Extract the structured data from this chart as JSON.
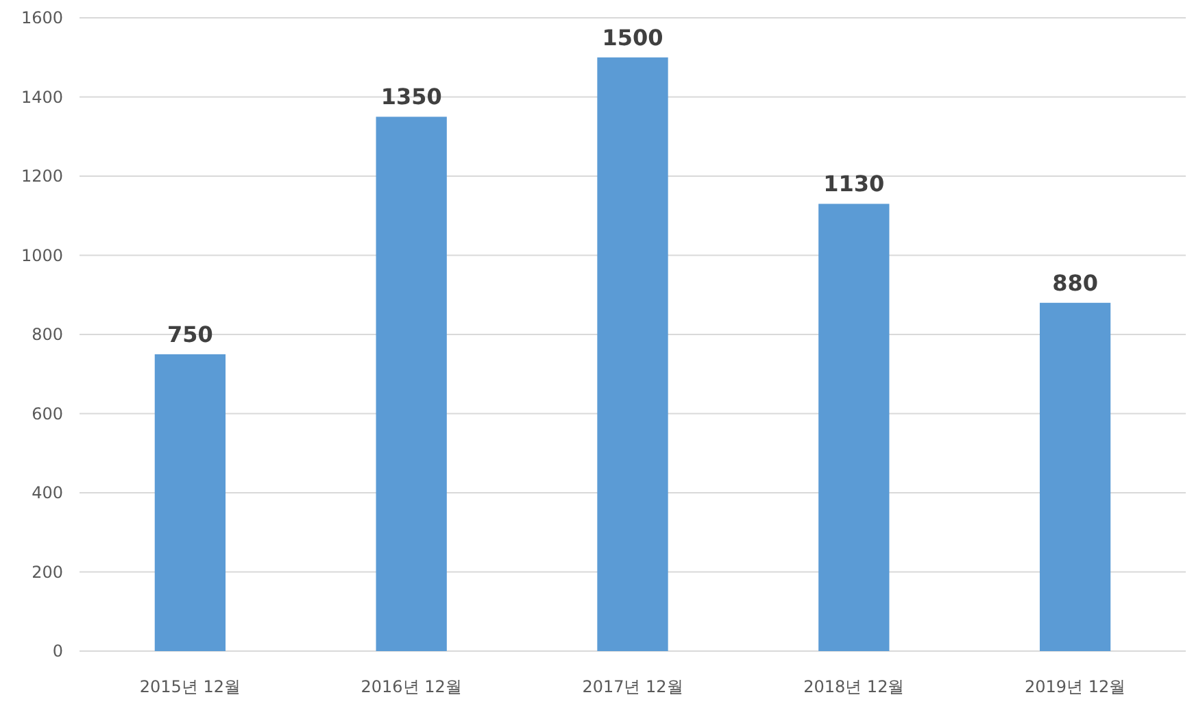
{
  "chart_data": {
    "type": "bar",
    "categories": [
      "2015년 12월",
      "2016년 12월",
      "2017년 12월",
      "2018년 12월",
      "2019년 12월"
    ],
    "values": [
      750,
      1350,
      1500,
      1130,
      880
    ],
    "color": "#5b9bd5",
    "ylim": [
      0,
      1600
    ],
    "yticks": [
      0,
      200,
      400,
      600,
      800,
      1000,
      1200,
      1400,
      1600
    ],
    "grid": "y",
    "data_labels": true
  }
}
